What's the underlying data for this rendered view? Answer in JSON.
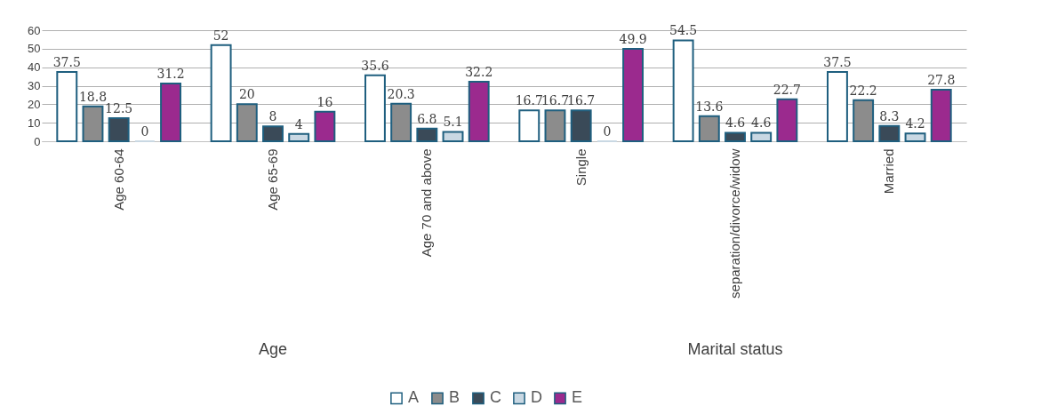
{
  "chart_data": {
    "type": "bar",
    "categories": [
      "Age 60-64",
      "Age 65-69",
      "Age 70 and above",
      "Single",
      "separation/divorce/widow",
      "Married"
    ],
    "series": [
      {
        "name": "A",
        "color": "#ffffff",
        "values": [
          37.5,
          52,
          35.6,
          16.7,
          54.5,
          37.5
        ]
      },
      {
        "name": "B",
        "color": "#8c8c8c",
        "values": [
          18.8,
          20,
          20.3,
          16.7,
          13.6,
          22.2
        ]
      },
      {
        "name": "C",
        "color": "#3a4a58",
        "values": [
          12.5,
          8,
          6.8,
          16.7,
          4.6,
          8.3
        ]
      },
      {
        "name": "D",
        "color": "#c9d8e3",
        "values": [
          0,
          4,
          5.1,
          0,
          4.6,
          4.2
        ]
      },
      {
        "name": "E",
        "color": "#9b2a8e",
        "values": [
          31.2,
          16,
          32.2,
          49.9,
          22.7,
          27.8
        ]
      }
    ],
    "ylim": [
      0,
      60
    ],
    "yticks": [
      0,
      10,
      20,
      30,
      40,
      50,
      60
    ],
    "grid": true,
    "legend": "bottom",
    "data_labels": true,
    "annotations": [
      "Age",
      "Marital status"
    ]
  }
}
